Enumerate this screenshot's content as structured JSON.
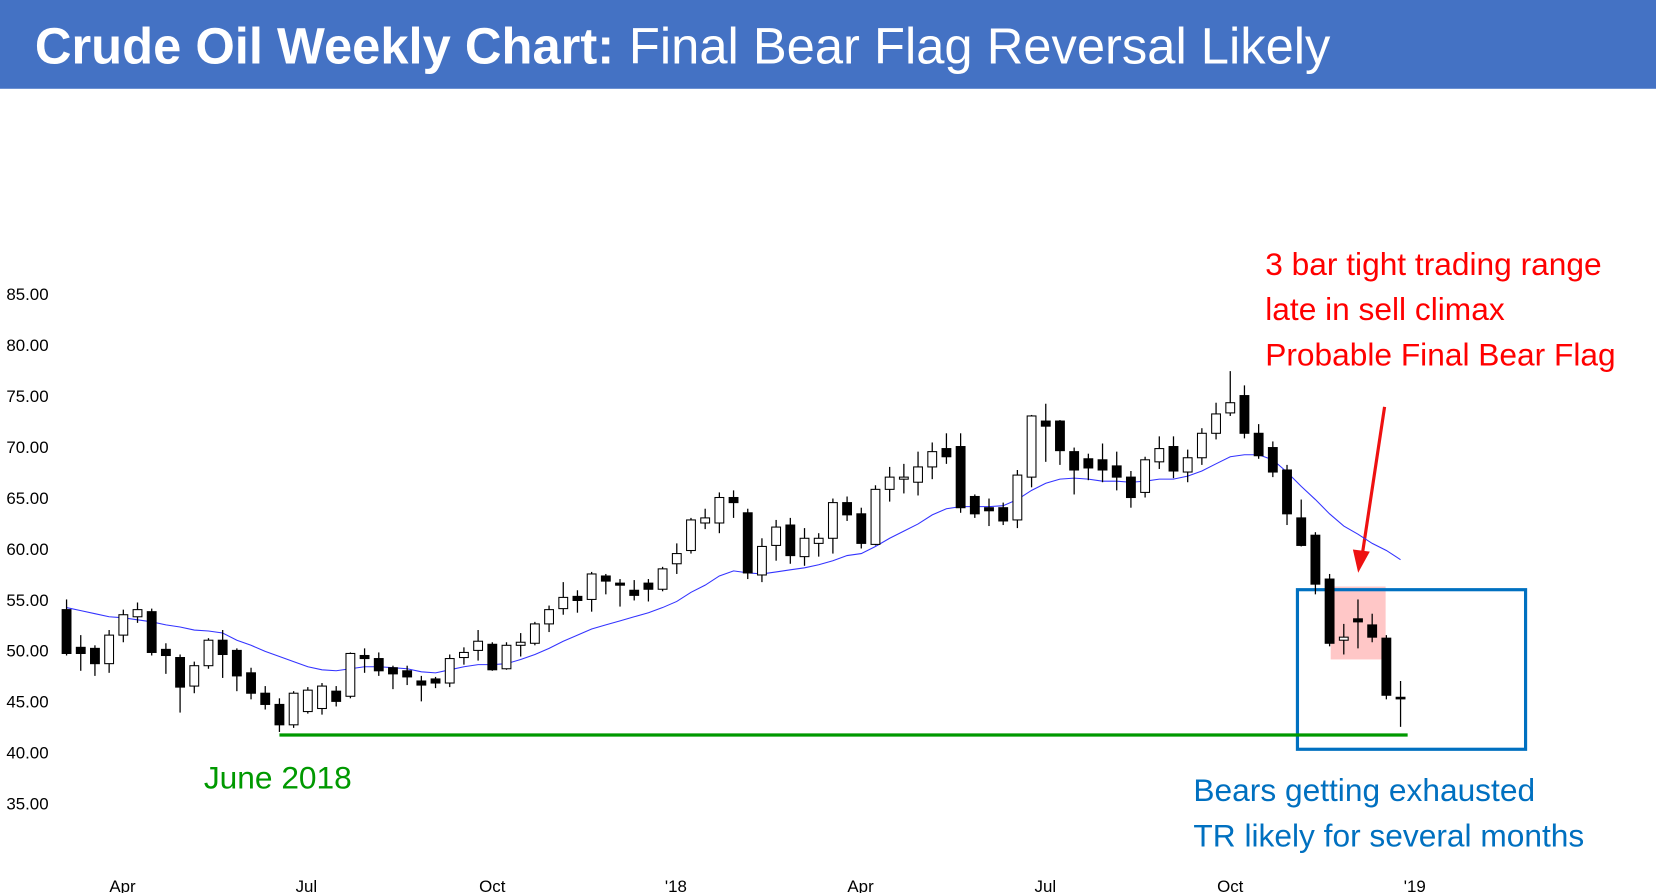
{
  "chart_data": {
    "type": "candlestick",
    "title": "Crude Oil Weekly Chart:",
    "subtitle": "Final Bear Flag Reversal Likely",
    "candles": {
      "up_color": "#ffffff",
      "down_color": "#000000",
      "open": [
        54,
        50.3,
        50.2,
        48.7,
        51.5,
        53.3,
        53.8,
        50.1,
        49.3,
        46.5,
        48.5,
        51,
        50,
        47.8,
        45.8,
        44.7,
        42.7,
        44,
        44.3,
        46,
        45.5,
        49.5,
        49.2,
        48.3,
        48,
        47,
        47.2,
        46.8,
        49.3,
        50,
        50.6,
        48.2,
        50.5,
        50.7,
        52.6,
        54.1,
        55.3,
        55,
        57.3,
        56.6,
        55.9,
        56.6,
        56,
        58.5,
        59.8,
        62.5,
        62.5,
        65,
        63.5,
        57.4,
        60.3,
        62.3,
        59.2,
        60.5,
        61,
        64.5,
        63.4,
        60.4,
        65.8,
        66.8,
        66.5,
        68,
        69.8,
        70,
        65.1,
        64,
        64,
        62.8,
        67,
        72.5,
        72.5,
        69.5,
        68.8,
        68.7,
        68.1,
        67,
        65.5,
        68.5,
        70,
        67.5,
        68.9,
        71.3,
        73.3,
        75,
        71.3,
        69.9,
        67.7,
        63,
        61.3,
        57,
        51,
        53.1,
        52.5,
        51.2,
        45.4
      ],
      "high": [
        55,
        51.5,
        50.5,
        52,
        54,
        54.7,
        54.1,
        50.7,
        49.6,
        48.9,
        51.2,
        52,
        50.2,
        48.3,
        46.5,
        45.3,
        46,
        46.4,
        46.8,
        46.5,
        49.8,
        50.2,
        49.8,
        48.5,
        48.5,
        47.5,
        47.4,
        49.6,
        50.3,
        52,
        50.8,
        50.8,
        51.7,
        52.8,
        54.4,
        56.7,
        55.9,
        57.7,
        57.5,
        57,
        56.9,
        57,
        58.2,
        60.5,
        63,
        63.9,
        65.5,
        65.7,
        63.9,
        61,
        62.8,
        63,
        62,
        61.5,
        64.9,
        65.1,
        64,
        66.2,
        68,
        68.3,
        69.5,
        70.4,
        71.3,
        71.3,
        65.3,
        64.9,
        64.5,
        67.7,
        73.1,
        74.2,
        72.6,
        69.9,
        69.3,
        70.3,
        69.5,
        67.6,
        69,
        71,
        71,
        69.7,
        71.8,
        74.3,
        77.4,
        76,
        72.2,
        70.5,
        68.2,
        64.8,
        61.6,
        57.5,
        52.6,
        55,
        53.6,
        51.5,
        47
      ],
      "low": [
        49.5,
        48,
        47.5,
        47.8,
        50.8,
        52.7,
        49.5,
        47.7,
        43.9,
        45.8,
        48.2,
        47.3,
        46,
        45.2,
        44.2,
        42,
        42.4,
        43.8,
        43.7,
        44.5,
        45.3,
        47.8,
        47.5,
        46.2,
        46.6,
        45,
        46.3,
        46.4,
        48.6,
        49,
        48,
        48.1,
        49.4,
        50.5,
        51.8,
        53.5,
        53.7,
        53.8,
        55.5,
        54.3,
        54.9,
        54.8,
        55.8,
        57.5,
        59.5,
        61.9,
        61.5,
        63,
        57,
        56.7,
        58.8,
        58.5,
        58.3,
        59.2,
        59.5,
        62.7,
        60,
        60.3,
        64.6,
        65.4,
        65.2,
        66.8,
        68.3,
        63.5,
        63,
        62.2,
        62.3,
        62,
        66,
        68.5,
        68.2,
        65.3,
        66.7,
        66.5,
        65.7,
        64,
        65,
        67.8,
        66.9,
        66.5,
        68.2,
        70.7,
        73,
        70.8,
        68.8,
        67,
        62.3,
        60.2,
        55.5,
        50.4,
        49.6,
        50.2,
        50.8,
        45.2,
        42.5
      ],
      "close": [
        49.7,
        49.7,
        48.7,
        51.5,
        53.5,
        54,
        49.8,
        49.5,
        46.4,
        48.5,
        51,
        49.6,
        47.5,
        45.8,
        44.7,
        42.7,
        45.8,
        46.1,
        46.5,
        45,
        49.7,
        49.2,
        48,
        47.7,
        47.4,
        46.6,
        46.8,
        49.2,
        49.8,
        50.9,
        48.1,
        50.5,
        50.8,
        52.6,
        54,
        55.2,
        54.9,
        57.5,
        56.8,
        56.4,
        55.4,
        56,
        58,
        59.5,
        62.8,
        63,
        65,
        64.5,
        57.6,
        60.2,
        62.1,
        59.3,
        61,
        61,
        64.5,
        63.3,
        60.5,
        65.8,
        67,
        67,
        68,
        69.5,
        69,
        64,
        63.4,
        63.7,
        62.7,
        67.2,
        73,
        72,
        69.6,
        67.7,
        67.9,
        67.7,
        67,
        65,
        68.7,
        69.8,
        67.6,
        68.9,
        71.3,
        73.2,
        74.3,
        71.3,
        69.1,
        67.5,
        63.4,
        60.3,
        56.5,
        50.7,
        51.3,
        52.8,
        51.3,
        45.6,
        45.3
      ]
    },
    "moving_average": {
      "color": "#3333ff",
      "values": [
        54.2,
        53.9,
        53.6,
        53.3,
        53.2,
        53.0,
        52.8,
        52.5,
        52.3,
        52.0,
        51.9,
        51.7,
        51.0,
        50.5,
        49.9,
        49.4,
        48.9,
        48.4,
        48.1,
        48.0,
        48.2,
        48.4,
        48.4,
        48.3,
        48.2,
        47.9,
        47.8,
        48.1,
        48.4,
        48.6,
        48.6,
        48.7,
        49.1,
        49.6,
        50.2,
        50.9,
        51.5,
        52.1,
        52.5,
        52.9,
        53.3,
        53.7,
        54.2,
        54.8,
        55.7,
        56.4,
        57.3,
        57.8,
        57.6,
        57.5,
        57.7,
        57.9,
        58.1,
        58.4,
        58.8,
        59.3,
        59.5,
        60.2,
        61.0,
        61.7,
        62.4,
        63.3,
        63.9,
        64.1,
        64.1,
        64.1,
        64.2,
        64.8,
        65.7,
        66.4,
        66.8,
        66.9,
        66.8,
        66.6,
        66.6,
        66.5,
        66.6,
        66.8,
        66.8,
        67.1,
        67.6,
        68.3,
        69.0,
        69.2,
        69.2,
        68.7,
        67.5,
        66.1,
        64.8,
        63.4,
        62.2,
        61.4,
        60.5,
        59.8,
        58.9
      ]
    },
    "support": {
      "value": 41.7,
      "color": "#009900"
    },
    "xlim": [
      -4.69,
      112
    ],
    "xticks": [
      {
        "value": 3.94,
        "label": "Apr"
      },
      {
        "value": 16.9,
        "label": "Jul"
      },
      {
        "value": 30,
        "label": "Oct"
      },
      {
        "value": 42.94,
        "label": "'18"
      },
      {
        "value": 55.95,
        "label": "Apr"
      },
      {
        "value": 68.97,
        "label": "Jul"
      },
      {
        "value": 82,
        "label": "Oct"
      },
      {
        "value": 95,
        "label": "'19"
      }
    ],
    "ylim": [
      26.2,
      105.1
    ],
    "yticks": [
      {
        "value": 35,
        "label": "35.00"
      },
      {
        "value": 40,
        "label": "40.00"
      },
      {
        "value": 45,
        "label": "45.00"
      },
      {
        "value": 50,
        "label": "50.00"
      },
      {
        "value": 55,
        "label": "55.00"
      },
      {
        "value": 60,
        "label": "60.00"
      },
      {
        "value": 65,
        "label": "65.00"
      },
      {
        "value": 70,
        "label": "70.00"
      },
      {
        "value": 75,
        "label": "75.00"
      },
      {
        "value": 80,
        "label": "80.00"
      },
      {
        "value": 85,
        "label": "85.00"
      }
    ],
    "annotations": [
      {
        "color": "#ff0000",
        "lines": [
          "3 bar tight trading range",
          "late in sell climax",
          "Probable Final Bear Flag"
        ]
      },
      {
        "color": "#0070c0",
        "lines": [
          "Bears getting exhausted",
          "TR likely for several months"
        ]
      },
      {
        "color": "#009900",
        "lines": [
          "June 2018"
        ]
      }
    ]
  }
}
